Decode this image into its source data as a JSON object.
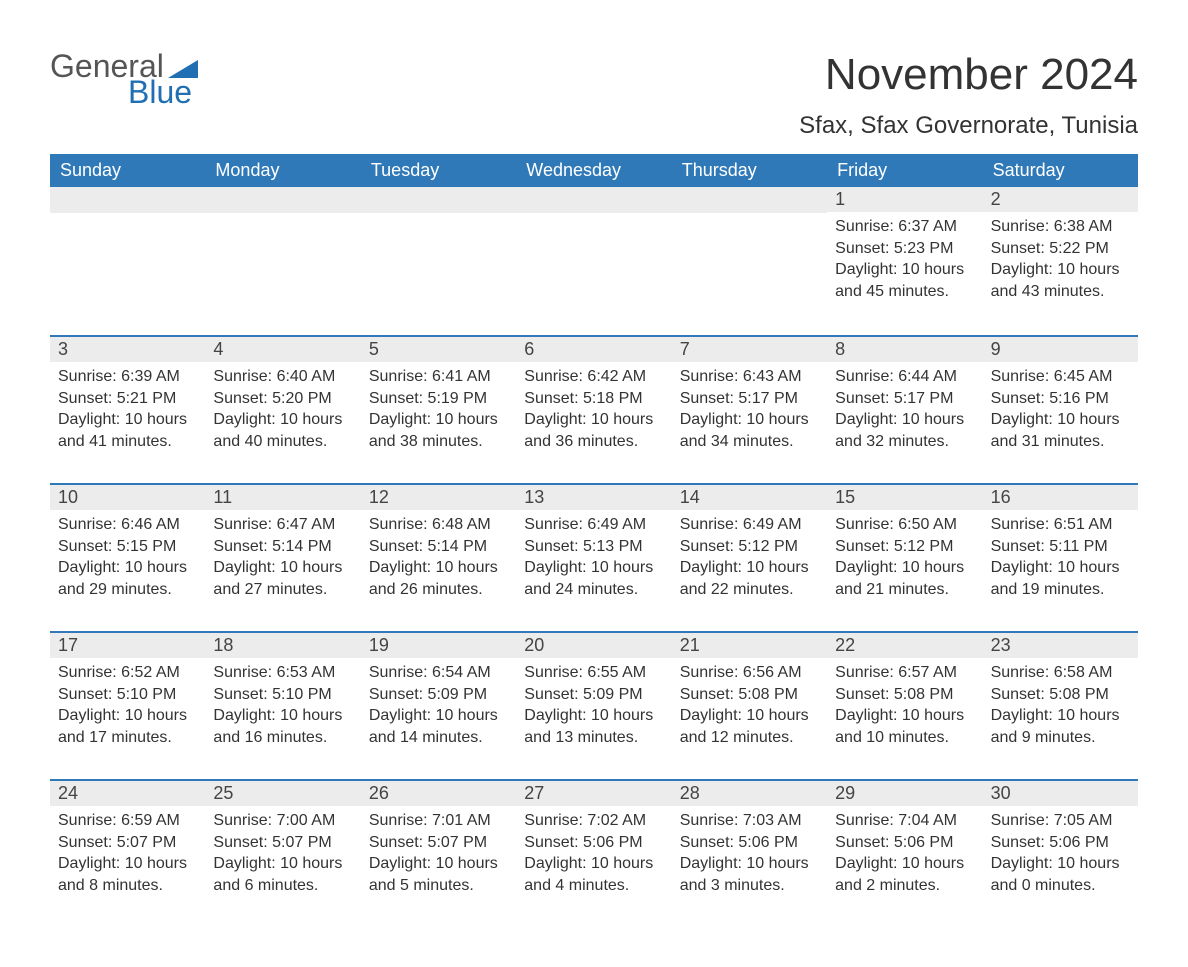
{
  "logo": {
    "text1": "General",
    "text2": "Blue",
    "tri_color": "#1f6fb2"
  },
  "title": "November 2024",
  "subtitle": "Sfax, Sfax Governorate, Tunisia",
  "colors": {
    "header_bg": "#2f79b9",
    "header_text": "#ffffff",
    "week_border": "#2f79b9",
    "daynum_bg": "#ececec",
    "body_text": "#333333"
  },
  "fonts": {
    "title_pt": 44,
    "subtitle_pt": 24,
    "header_pt": 18,
    "daynum_pt": 18,
    "body_pt": 16
  },
  "weekdays": [
    "Sunday",
    "Monday",
    "Tuesday",
    "Wednesday",
    "Thursday",
    "Friday",
    "Saturday"
  ],
  "weeks": [
    [
      null,
      null,
      null,
      null,
      null,
      {
        "n": "1",
        "sr": "Sunrise: 6:37 AM",
        "ss": "Sunset: 5:23 PM",
        "dl": "Daylight: 10 hours and 45 minutes."
      },
      {
        "n": "2",
        "sr": "Sunrise: 6:38 AM",
        "ss": "Sunset: 5:22 PM",
        "dl": "Daylight: 10 hours and 43 minutes."
      }
    ],
    [
      {
        "n": "3",
        "sr": "Sunrise: 6:39 AM",
        "ss": "Sunset: 5:21 PM",
        "dl": "Daylight: 10 hours and 41 minutes."
      },
      {
        "n": "4",
        "sr": "Sunrise: 6:40 AM",
        "ss": "Sunset: 5:20 PM",
        "dl": "Daylight: 10 hours and 40 minutes."
      },
      {
        "n": "5",
        "sr": "Sunrise: 6:41 AM",
        "ss": "Sunset: 5:19 PM",
        "dl": "Daylight: 10 hours and 38 minutes."
      },
      {
        "n": "6",
        "sr": "Sunrise: 6:42 AM",
        "ss": "Sunset: 5:18 PM",
        "dl": "Daylight: 10 hours and 36 minutes."
      },
      {
        "n": "7",
        "sr": "Sunrise: 6:43 AM",
        "ss": "Sunset: 5:17 PM",
        "dl": "Daylight: 10 hours and 34 minutes."
      },
      {
        "n": "8",
        "sr": "Sunrise: 6:44 AM",
        "ss": "Sunset: 5:17 PM",
        "dl": "Daylight: 10 hours and 32 minutes."
      },
      {
        "n": "9",
        "sr": "Sunrise: 6:45 AM",
        "ss": "Sunset: 5:16 PM",
        "dl": "Daylight: 10 hours and 31 minutes."
      }
    ],
    [
      {
        "n": "10",
        "sr": "Sunrise: 6:46 AM",
        "ss": "Sunset: 5:15 PM",
        "dl": "Daylight: 10 hours and 29 minutes."
      },
      {
        "n": "11",
        "sr": "Sunrise: 6:47 AM",
        "ss": "Sunset: 5:14 PM",
        "dl": "Daylight: 10 hours and 27 minutes."
      },
      {
        "n": "12",
        "sr": "Sunrise: 6:48 AM",
        "ss": "Sunset: 5:14 PM",
        "dl": "Daylight: 10 hours and 26 minutes."
      },
      {
        "n": "13",
        "sr": "Sunrise: 6:49 AM",
        "ss": "Sunset: 5:13 PM",
        "dl": "Daylight: 10 hours and 24 minutes."
      },
      {
        "n": "14",
        "sr": "Sunrise: 6:49 AM",
        "ss": "Sunset: 5:12 PM",
        "dl": "Daylight: 10 hours and 22 minutes."
      },
      {
        "n": "15",
        "sr": "Sunrise: 6:50 AM",
        "ss": "Sunset: 5:12 PM",
        "dl": "Daylight: 10 hours and 21 minutes."
      },
      {
        "n": "16",
        "sr": "Sunrise: 6:51 AM",
        "ss": "Sunset: 5:11 PM",
        "dl": "Daylight: 10 hours and 19 minutes."
      }
    ],
    [
      {
        "n": "17",
        "sr": "Sunrise: 6:52 AM",
        "ss": "Sunset: 5:10 PM",
        "dl": "Daylight: 10 hours and 17 minutes."
      },
      {
        "n": "18",
        "sr": "Sunrise: 6:53 AM",
        "ss": "Sunset: 5:10 PM",
        "dl": "Daylight: 10 hours and 16 minutes."
      },
      {
        "n": "19",
        "sr": "Sunrise: 6:54 AM",
        "ss": "Sunset: 5:09 PM",
        "dl": "Daylight: 10 hours and 14 minutes."
      },
      {
        "n": "20",
        "sr": "Sunrise: 6:55 AM",
        "ss": "Sunset: 5:09 PM",
        "dl": "Daylight: 10 hours and 13 minutes."
      },
      {
        "n": "21",
        "sr": "Sunrise: 6:56 AM",
        "ss": "Sunset: 5:08 PM",
        "dl": "Daylight: 10 hours and 12 minutes."
      },
      {
        "n": "22",
        "sr": "Sunrise: 6:57 AM",
        "ss": "Sunset: 5:08 PM",
        "dl": "Daylight: 10 hours and 10 minutes."
      },
      {
        "n": "23",
        "sr": "Sunrise: 6:58 AM",
        "ss": "Sunset: 5:08 PM",
        "dl": "Daylight: 10 hours and 9 minutes."
      }
    ],
    [
      {
        "n": "24",
        "sr": "Sunrise: 6:59 AM",
        "ss": "Sunset: 5:07 PM",
        "dl": "Daylight: 10 hours and 8 minutes."
      },
      {
        "n": "25",
        "sr": "Sunrise: 7:00 AM",
        "ss": "Sunset: 5:07 PM",
        "dl": "Daylight: 10 hours and 6 minutes."
      },
      {
        "n": "26",
        "sr": "Sunrise: 7:01 AM",
        "ss": "Sunset: 5:07 PM",
        "dl": "Daylight: 10 hours and 5 minutes."
      },
      {
        "n": "27",
        "sr": "Sunrise: 7:02 AM",
        "ss": "Sunset: 5:06 PM",
        "dl": "Daylight: 10 hours and 4 minutes."
      },
      {
        "n": "28",
        "sr": "Sunrise: 7:03 AM",
        "ss": "Sunset: 5:06 PM",
        "dl": "Daylight: 10 hours and 3 minutes."
      },
      {
        "n": "29",
        "sr": "Sunrise: 7:04 AM",
        "ss": "Sunset: 5:06 PM",
        "dl": "Daylight: 10 hours and 2 minutes."
      },
      {
        "n": "30",
        "sr": "Sunrise: 7:05 AM",
        "ss": "Sunset: 5:06 PM",
        "dl": "Daylight: 10 hours and 0 minutes."
      }
    ]
  ]
}
